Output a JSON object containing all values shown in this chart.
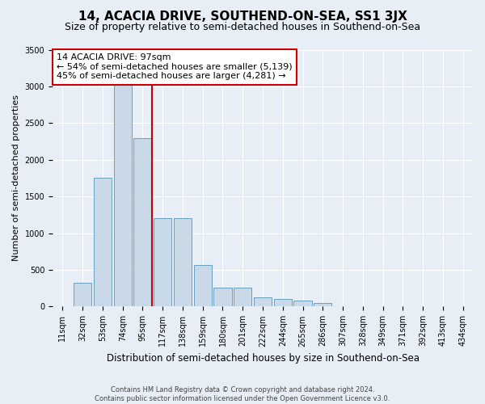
{
  "title": "14, ACACIA DRIVE, SOUTHEND-ON-SEA, SS1 3JX",
  "subtitle": "Size of property relative to semi-detached houses in Southend-on-Sea",
  "xlabel": "Distribution of semi-detached houses by size in Southend-on-Sea",
  "ylabel": "Number of semi-detached properties",
  "footer_line1": "Contains HM Land Registry data © Crown copyright and database right 2024.",
  "footer_line2": "Contains public sector information licensed under the Open Government Licence v3.0.",
  "categories": [
    "11sqm",
    "32sqm",
    "53sqm",
    "74sqm",
    "95sqm",
    "117sqm",
    "138sqm",
    "159sqm",
    "180sqm",
    "201sqm",
    "222sqm",
    "244sqm",
    "265sqm",
    "286sqm",
    "307sqm",
    "328sqm",
    "349sqm",
    "371sqm",
    "392sqm",
    "413sqm",
    "434sqm"
  ],
  "values": [
    10,
    320,
    1750,
    3380,
    2300,
    1200,
    1200,
    570,
    255,
    255,
    130,
    100,
    80,
    50,
    10,
    0,
    0,
    0,
    0,
    0,
    0
  ],
  "bar_color": "#c9d9e8",
  "bar_edge_color": "#6a9fc0",
  "vline_x_index": 4,
  "vline_color": "#cc0000",
  "annotation_text": "14 ACACIA DRIVE: 97sqm\n← 54% of semi-detached houses are smaller (5,139)\n45% of semi-detached houses are larger (4,281) →",
  "annotation_box_color": "#ffffff",
  "annotation_box_edge_color": "#cc0000",
  "ylim": [
    0,
    3500
  ],
  "yticks": [
    0,
    500,
    1000,
    1500,
    2000,
    2500,
    3000,
    3500
  ],
  "bg_color": "#e8eef5",
  "plot_bg_color": "#e8eef5",
  "grid_color": "#ffffff",
  "title_fontsize": 11,
  "subtitle_fontsize": 9,
  "xlabel_fontsize": 8.5,
  "ylabel_fontsize": 8,
  "tick_fontsize": 7,
  "annotation_fontsize": 8
}
